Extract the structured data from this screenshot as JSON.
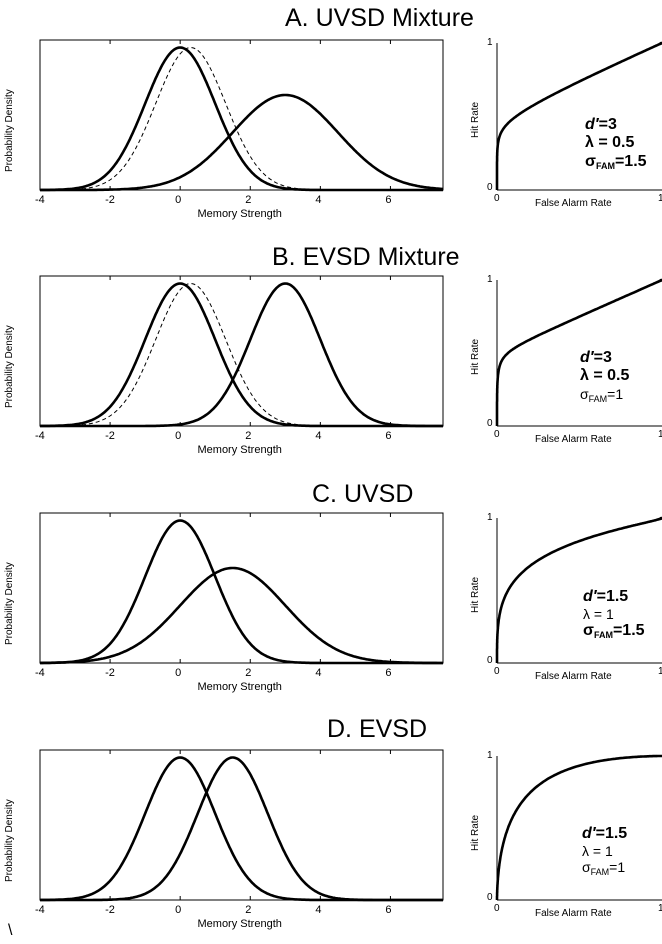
{
  "chart_data": [
    {
      "type": "line",
      "title": "A. UVSD Mixture",
      "xlabel": "Memory Strength",
      "ylabel": "Probability Density",
      "xlim": [
        -4,
        7.5
      ],
      "xticks": [
        "-4",
        "-2",
        "0",
        "2",
        "4",
        "6"
      ],
      "series": [
        {
          "style": "solid",
          "mean": 0,
          "sd": 1
        },
        {
          "style": "dashed",
          "mean": 0.3,
          "sd": 1
        },
        {
          "style": "solid",
          "mean": 3,
          "sd": 1.5
        }
      ],
      "roc": {
        "xlabel": "False Alarm Rate",
        "ylabel": "Hit Rate",
        "xticks": [
          "0",
          "1"
        ],
        "yticks": [
          "0",
          "1"
        ],
        "d": 3,
        "lambda": 0.5,
        "sigma": 1.5
      },
      "params": {
        "d_label": "d′=3",
        "lambda_label": "λ = 0.5",
        "sigma_label": "σ",
        "sigma_sub": "FAM",
        "sigma_value": "=1.5"
      },
      "param_weights": {
        "lambda": "bold",
        "sigma": "bold"
      }
    },
    {
      "type": "line",
      "title": "B. EVSD Mixture",
      "xlabel": "Memory Strength",
      "ylabel": "Probability Density",
      "xlim": [
        -4,
        7.5
      ],
      "xticks": [
        "-4",
        "-2",
        "0",
        "2",
        "4",
        "6"
      ],
      "series": [
        {
          "style": "solid",
          "mean": 0,
          "sd": 1
        },
        {
          "style": "dashed",
          "mean": 0.3,
          "sd": 1
        },
        {
          "style": "solid",
          "mean": 3,
          "sd": 1
        }
      ],
      "roc": {
        "xlabel": "False Alarm Rate",
        "ylabel": "Hit Rate",
        "xticks": [
          "0",
          "1"
        ],
        "yticks": [
          "0",
          "1"
        ],
        "d": 3,
        "lambda": 0.5,
        "sigma": 1
      },
      "params": {
        "d_label": "d′=3",
        "lambda_label": "λ = 0.5",
        "sigma_label": "σ",
        "sigma_sub": "FAM",
        "sigma_value": "=1"
      },
      "param_weights": {
        "lambda": "bold",
        "sigma": "normal"
      }
    },
    {
      "type": "line",
      "title": "C. UVSD",
      "xlabel": "Memory Strength",
      "ylabel": "Probability Density",
      "xlim": [
        -4,
        7.5
      ],
      "xticks": [
        "-4",
        "-2",
        "0",
        "2",
        "4",
        "6"
      ],
      "series": [
        {
          "style": "solid",
          "mean": 0,
          "sd": 1
        },
        {
          "style": "solid",
          "mean": 1.5,
          "sd": 1.5
        }
      ],
      "roc": {
        "xlabel": "False Alarm Rate",
        "ylabel": "Hit Rate",
        "xticks": [
          "0",
          "1"
        ],
        "yticks": [
          "0",
          "1"
        ],
        "d": 1.5,
        "lambda": 1,
        "sigma": 1.5
      },
      "params": {
        "d_label": "d′=1.5",
        "lambda_label": "λ = 1",
        "sigma_label": "σ",
        "sigma_sub": "FAM",
        "sigma_value": "=1.5"
      },
      "param_weights": {
        "lambda": "normal",
        "sigma": "bold"
      }
    },
    {
      "type": "line",
      "title": "D. EVSD",
      "xlabel": "Memory Strength",
      "ylabel": "Probability Density",
      "xlim": [
        -4,
        7.5
      ],
      "xticks": [
        "-4",
        "-2",
        "0",
        "2",
        "4",
        "6"
      ],
      "series": [
        {
          "style": "solid",
          "mean": 0,
          "sd": 1
        },
        {
          "style": "solid",
          "mean": 1.5,
          "sd": 1
        }
      ],
      "roc": {
        "xlabel": "False Alarm Rate",
        "ylabel": "Hit Rate",
        "xticks": [
          "0",
          "1"
        ],
        "yticks": [
          "0",
          "1"
        ],
        "d": 1.5,
        "lambda": 1,
        "sigma": 1
      },
      "params": {
        "d_label": "d′=1.5",
        "lambda_label": "λ = 1",
        "sigma_label": "σ",
        "sigma_sub": "FAM",
        "sigma_value": "=1"
      },
      "param_weights": {
        "lambda": "normal",
        "sigma": "normal"
      }
    }
  ],
  "stray_mark": "\\"
}
